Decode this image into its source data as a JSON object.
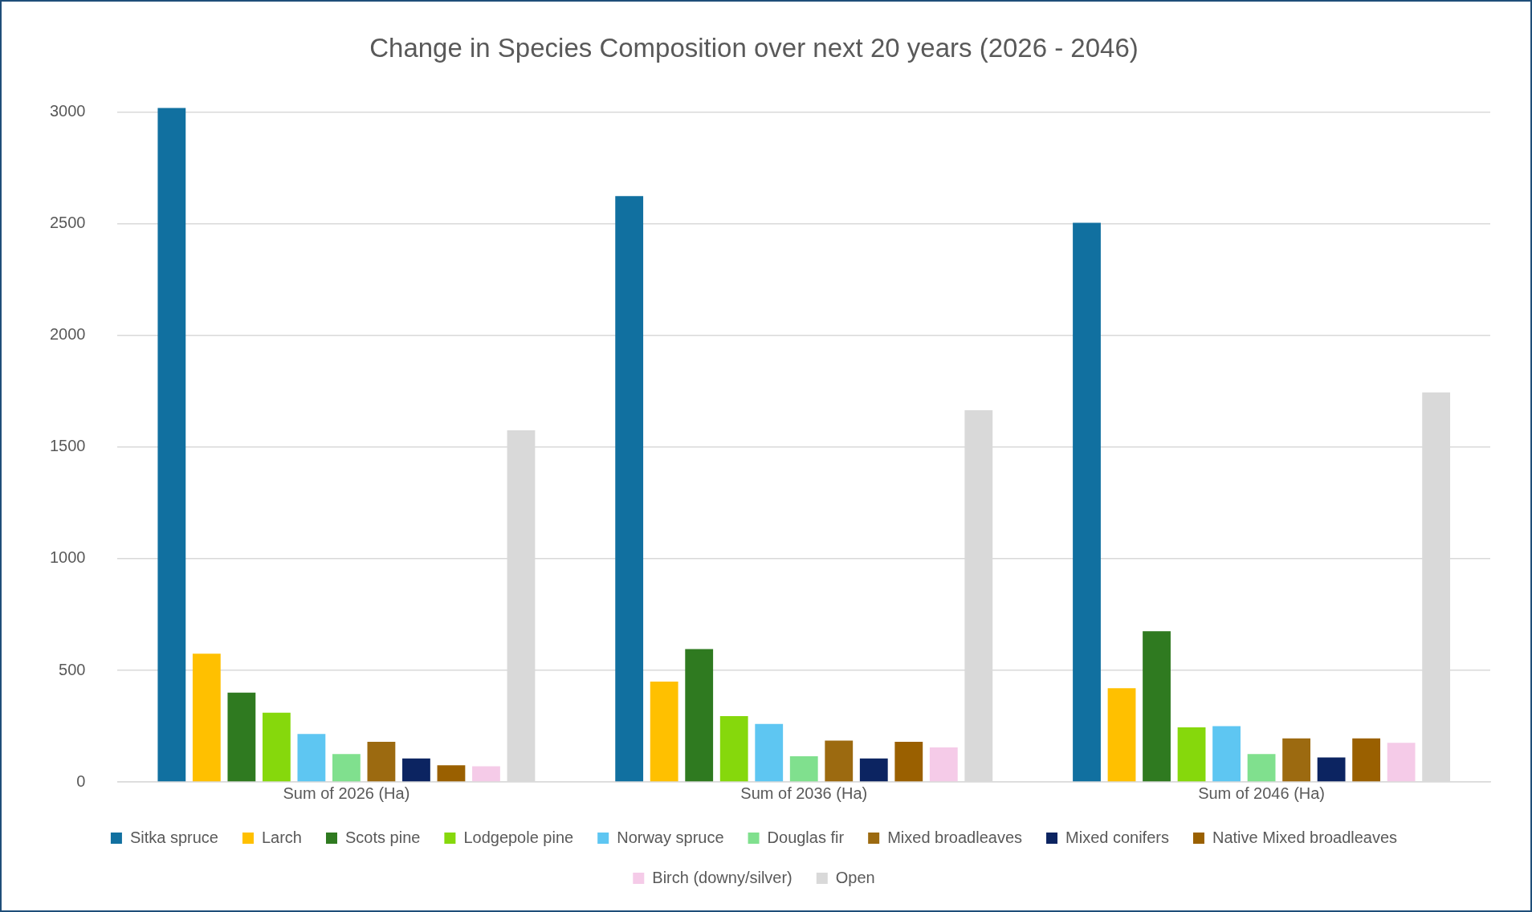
{
  "chart_data": {
    "type": "bar",
    "title": "Change in Species Composition over next 20 years (2026 - 2046)",
    "categories": [
      "Sum of 2026 (Ha)",
      "Sum of 2036 (Ha)",
      "Sum of 2046 (Ha)"
    ],
    "series": [
      {
        "name": "Sitka spruce",
        "color": "#1170a0",
        "values": [
          3020,
          2625,
          2505
        ]
      },
      {
        "name": "Larch",
        "color": "#ffc000",
        "values": [
          575,
          450,
          420
        ]
      },
      {
        "name": "Scots pine",
        "color": "#2f7a20",
        "values": [
          400,
          595,
          675
        ]
      },
      {
        "name": "Lodgepole pine",
        "color": "#86d80c",
        "values": [
          310,
          295,
          245
        ]
      },
      {
        "name": "Norway spruce",
        "color": "#5ec6f2",
        "values": [
          215,
          260,
          250
        ]
      },
      {
        "name": "Douglas fir",
        "color": "#80e08e",
        "values": [
          125,
          115,
          125
        ]
      },
      {
        "name": "Mixed broadleaves",
        "color": "#9c6a10",
        "values": [
          180,
          185,
          195
        ]
      },
      {
        "name": "Mixed conifers",
        "color": "#0c2461",
        "values": [
          105,
          105,
          110
        ]
      },
      {
        "name": "Native Mixed broadleaves",
        "color": "#9a6000",
        "values": [
          75,
          180,
          195
        ]
      },
      {
        "name": "Birch (downy/silver)",
        "color": "#f5cbe8",
        "values": [
          70,
          155,
          175
        ]
      },
      {
        "name": "Open",
        "color": "#d9d9d9",
        "values": [
          1575,
          1665,
          1745
        ]
      }
    ],
    "ylim": [
      0,
      3030
    ],
    "yticks": [
      0,
      500,
      1000,
      1500,
      2000,
      2500,
      3000
    ],
    "grid": "y",
    "legend": "bottom"
  }
}
